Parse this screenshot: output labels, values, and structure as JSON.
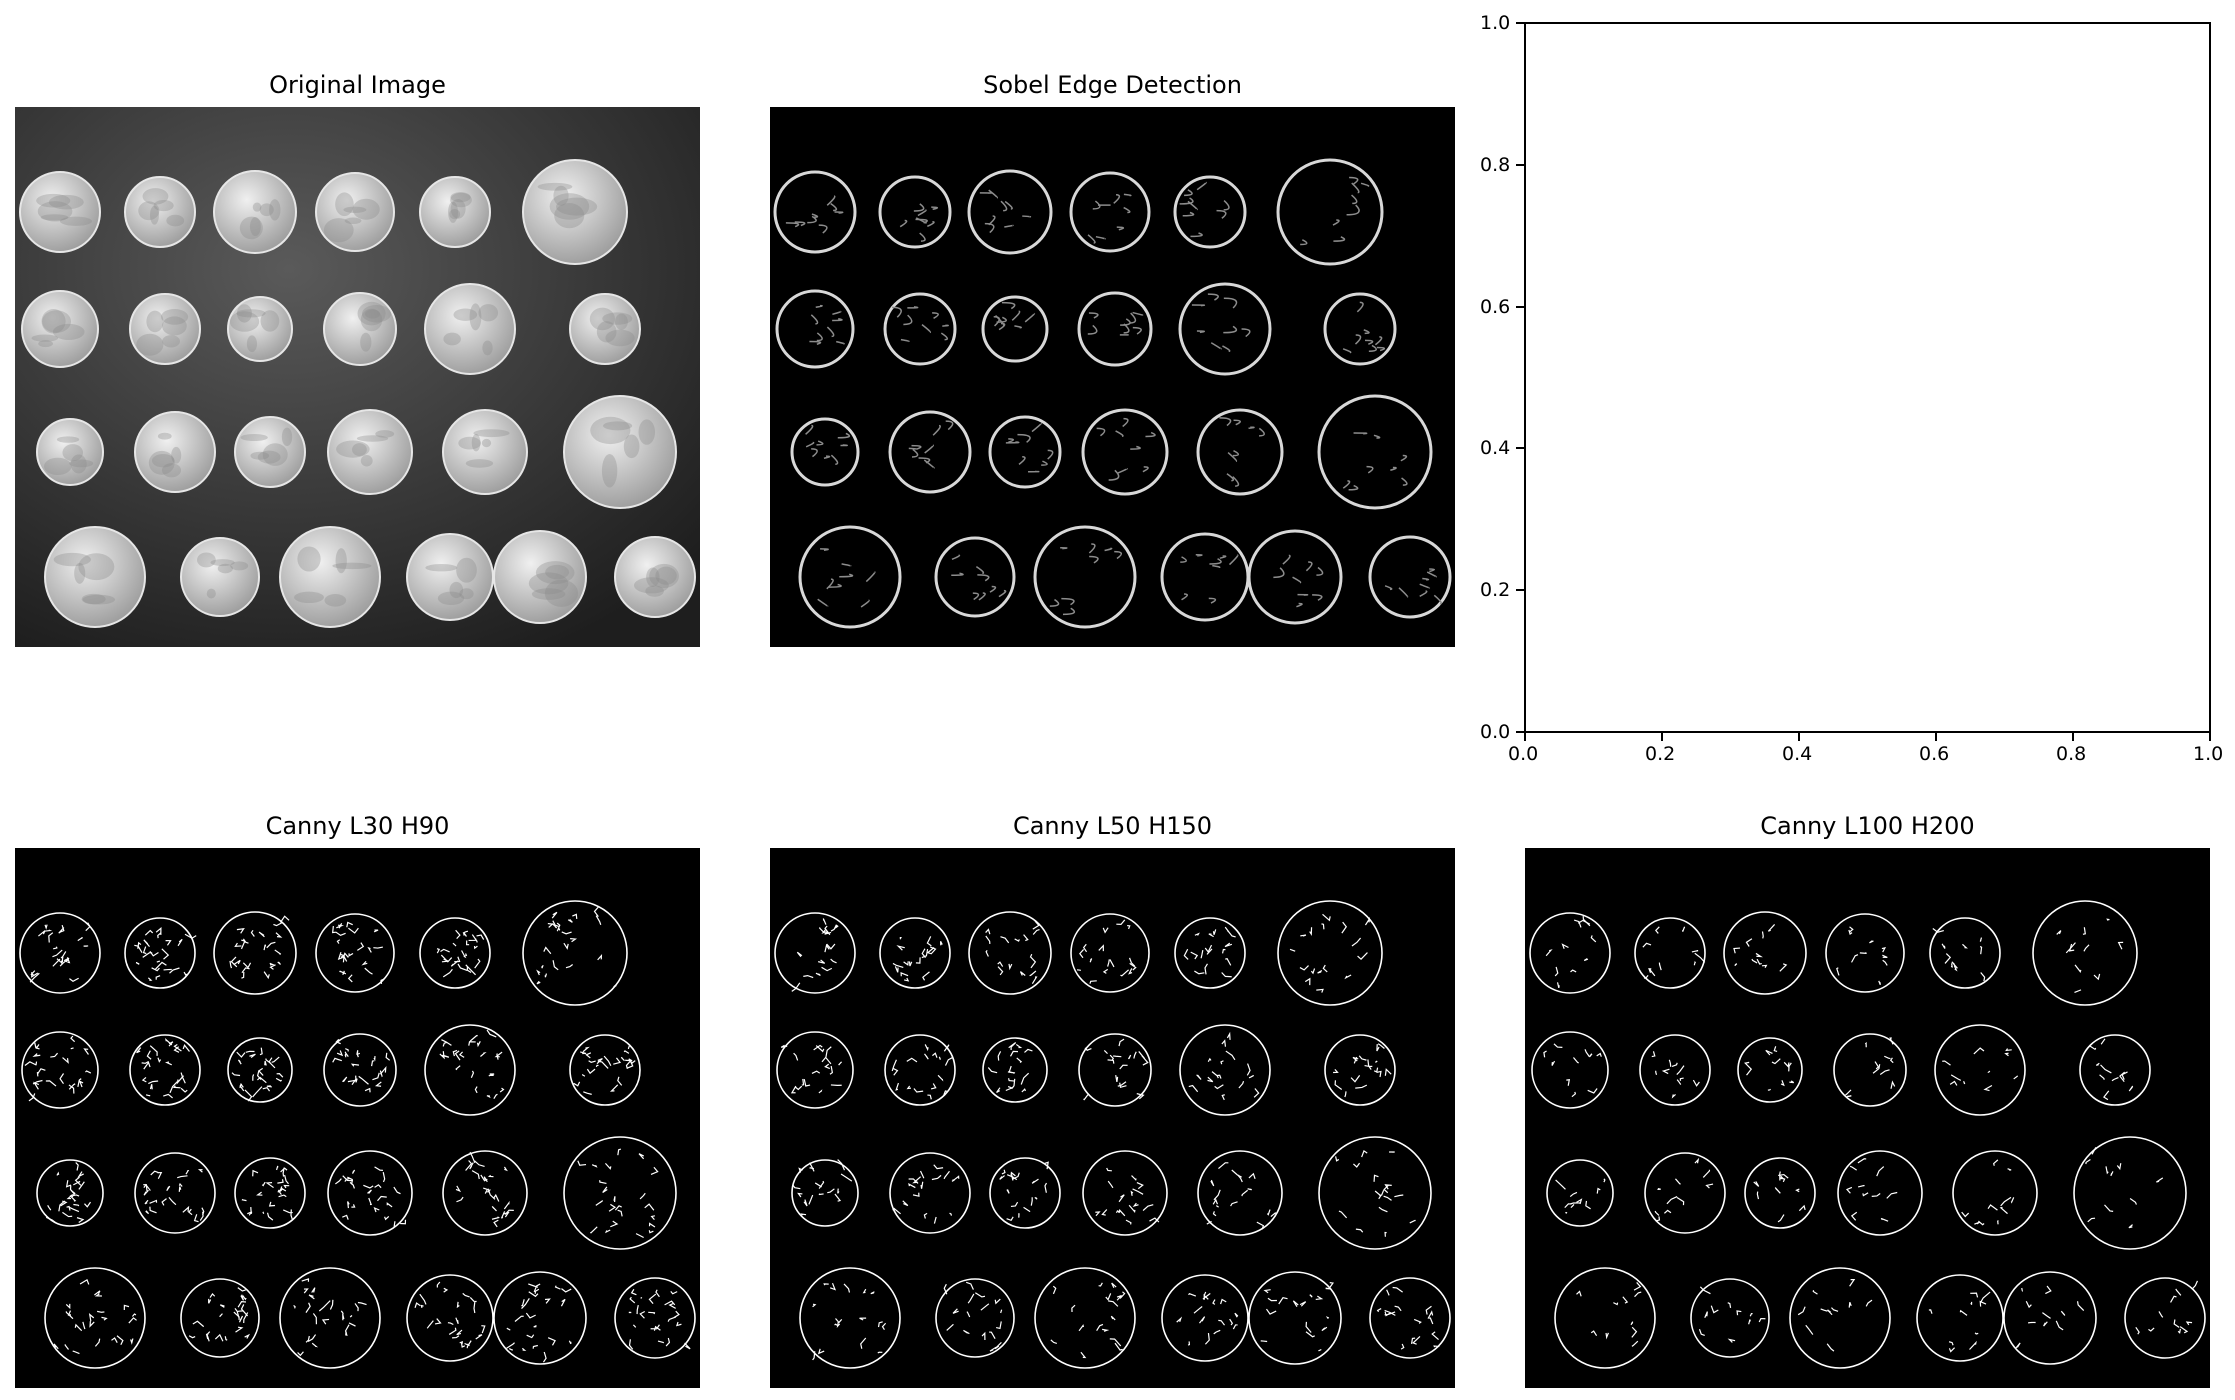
{
  "panels": [
    {
      "title": "Original Image",
      "style": "grayscale"
    },
    {
      "title": "Sobel Edge Detection",
      "style": "sobel"
    },
    {
      "title": "",
      "style": "empty-axes"
    },
    {
      "title": "Canny L30 H90",
      "style": "canny"
    },
    {
      "title": "Canny L50 H150",
      "style": "canny"
    },
    {
      "title": "Canny L100 H200",
      "style": "canny"
    }
  ],
  "empty_axes": {
    "x_ticks": [
      "0.0",
      "0.2",
      "0.4",
      "0.6",
      "0.8",
      "1.0"
    ],
    "y_ticks": [
      "0.0",
      "0.2",
      "0.4",
      "0.6",
      "0.8",
      "1.0"
    ],
    "xlim": [
      0,
      1
    ],
    "ylim": [
      0,
      1
    ]
  },
  "colors": {
    "background": "#ffffff",
    "image_dark": "#000000",
    "original_bg": "#3a3a3a",
    "coin_fill": "#d8d8d8",
    "edge": "#ffffff"
  }
}
